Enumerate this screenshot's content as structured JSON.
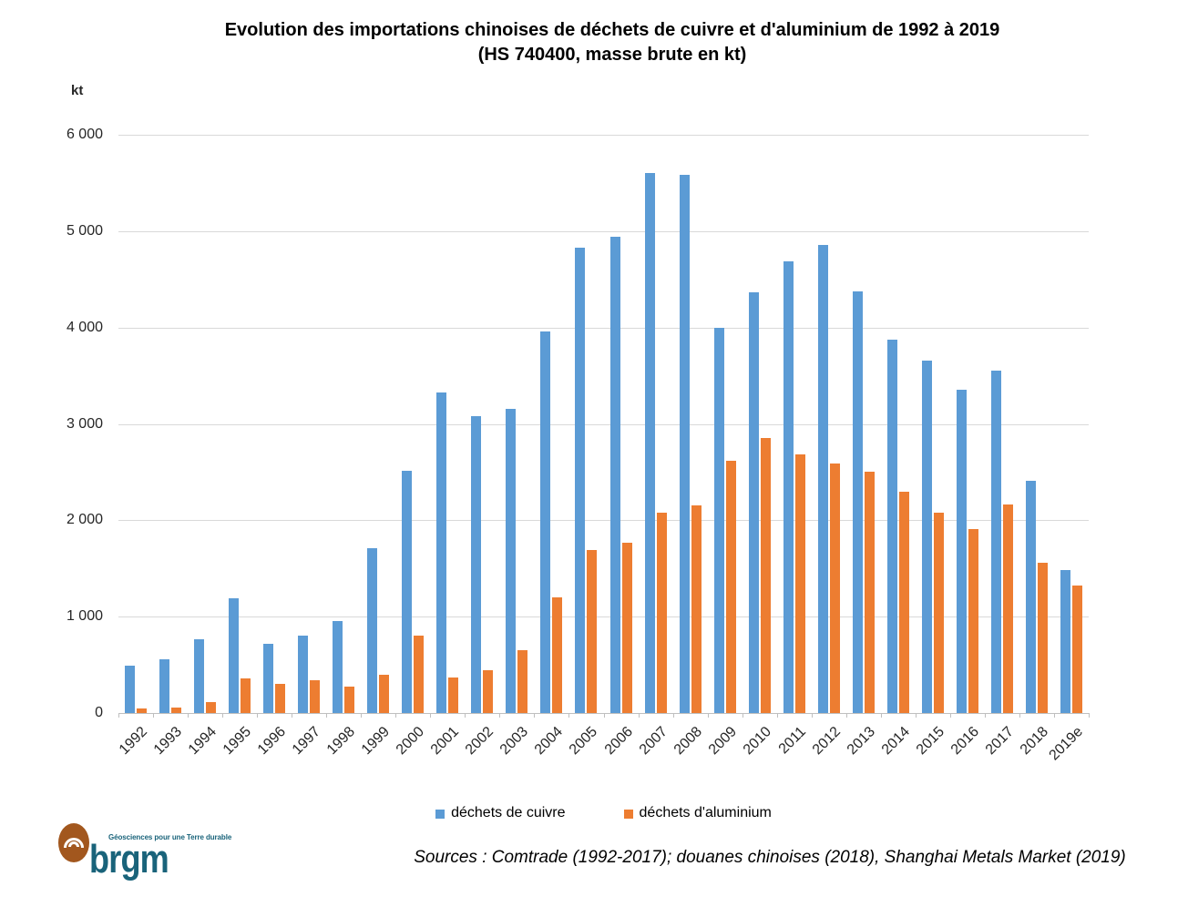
{
  "page": {
    "title_line1": "Evolution des importations chinoises de déchets de cuivre et d'aluminium de 1992 à 2019",
    "title_line2": "(HS 740400, masse brute en kt)",
    "sources": "Sources : Comtrade (1992-2017); douanes chinoises (2018), Shanghai Metals Market (2019)"
  },
  "logo": {
    "brand": "brgm",
    "tagline": "Géosciences pour une Terre durable",
    "circle_color": "#A2571E",
    "text_color": "#19637A"
  },
  "chart_data": {
    "type": "bar",
    "title": "Evolution des importations chinoises de déchets de cuivre et d'aluminium de 1992 à 2019 (HS 740400, masse brute en kt)",
    "xlabel": "",
    "ylabel": "kt",
    "ylim": [
      0,
      6000
    ],
    "grid": true,
    "legend_position": "bottom",
    "ytick_values": [
      6000,
      5000,
      4000,
      3000,
      2000,
      1000,
      0
    ],
    "ytick_labels": [
      "6 000",
      "5 000",
      "4 000",
      "3 000",
      "2 000",
      "1 000",
      "0"
    ],
    "categories": [
      "1992",
      "1993",
      "1994",
      "1995",
      "1996",
      "1997",
      "1998",
      "1999",
      "2000",
      "2001",
      "2002",
      "2003",
      "2004",
      "2005",
      "2006",
      "2007",
      "2008",
      "2009",
      "2010",
      "2011",
      "2012",
      "2013",
      "2014",
      "2015",
      "2016",
      "2017",
      "2018",
      "2019e"
    ],
    "series": [
      {
        "name": "déchets de cuivre",
        "color": "#5B9BD5",
        "values": [
          490,
          560,
          770,
          1190,
          715,
          805,
          955,
          1710,
          2510,
          3330,
          3080,
          3160,
          3955,
          4830,
          4945,
          5600,
          5580,
          4000,
          4365,
          4690,
          4860,
          4375,
          3870,
          3660,
          3350,
          3555,
          2410,
          1480
        ]
      },
      {
        "name": "déchets d'aluminium",
        "color": "#ED7D31",
        "values": [
          45,
          60,
          110,
          360,
          305,
          340,
          275,
          400,
          800,
          370,
          440,
          650,
          1200,
          1690,
          1770,
          2080,
          2150,
          2615,
          2855,
          2680,
          2590,
          2500,
          2300,
          2080,
          1910,
          2160,
          1560,
          1320
        ]
      }
    ]
  }
}
